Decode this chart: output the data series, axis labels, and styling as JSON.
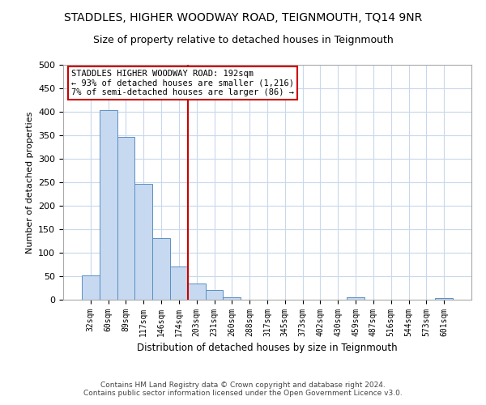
{
  "title": "STADDLES, HIGHER WOODWAY ROAD, TEIGNMOUTH, TQ14 9NR",
  "subtitle": "Size of property relative to detached houses in Teignmouth",
  "xlabel": "Distribution of detached houses by size in Teignmouth",
  "ylabel": "Number of detached properties",
  "bar_labels": [
    "32sqm",
    "60sqm",
    "89sqm",
    "117sqm",
    "146sqm",
    "174sqm",
    "203sqm",
    "231sqm",
    "260sqm",
    "288sqm",
    "317sqm",
    "345sqm",
    "373sqm",
    "402sqm",
    "430sqm",
    "459sqm",
    "487sqm",
    "516sqm",
    "544sqm",
    "573sqm",
    "601sqm"
  ],
  "bar_values": [
    51,
    404,
    347,
    246,
    131,
    70,
    35,
    21,
    6,
    0,
    0,
    0,
    0,
    0,
    0,
    5,
    0,
    0,
    0,
    0,
    3
  ],
  "bar_color": "#c6d9f0",
  "bar_edge_color": "#5a8fc3",
  "vline_color": "#cc0000",
  "ylim": [
    0,
    500
  ],
  "yticks": [
    0,
    50,
    100,
    150,
    200,
    250,
    300,
    350,
    400,
    450,
    500
  ],
  "annotation_title": "STADDLES HIGHER WOODWAY ROAD: 192sqm",
  "annotation_line1": "← 93% of detached houses are smaller (1,216)",
  "annotation_line2": "7% of semi-detached houses are larger (86) →",
  "footer_line1": "Contains HM Land Registry data © Crown copyright and database right 2024.",
  "footer_line2": "Contains public sector information licensed under the Open Government Licence v3.0.",
  "bg_color": "#ffffff",
  "grid_color": "#c8d8ec"
}
